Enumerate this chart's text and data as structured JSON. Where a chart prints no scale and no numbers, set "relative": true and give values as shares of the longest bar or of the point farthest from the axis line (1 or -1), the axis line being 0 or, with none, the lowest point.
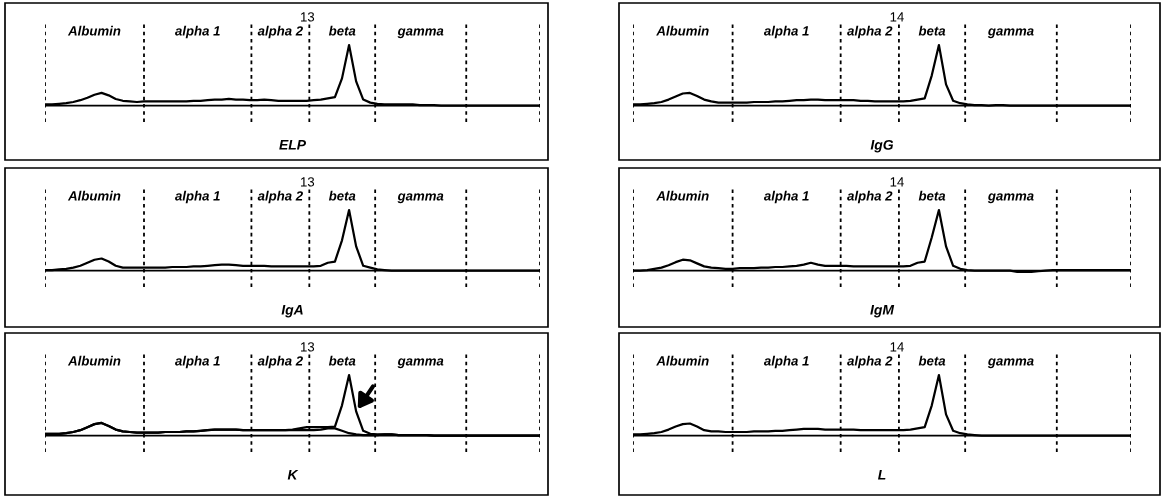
{
  "chart_data": [
    {
      "type": "line",
      "title": "ELP",
      "relative": true,
      "annotations": [
        "13",
        "Albumin",
        "alpha 1",
        "alpha 2",
        "beta",
        "gamma"
      ],
      "categories": [
        null,
        null,
        null,
        null,
        null,
        null,
        null,
        null,
        null,
        null,
        null,
        null,
        null,
        null,
        null,
        null,
        null,
        null,
        null,
        null,
        null,
        null,
        null,
        null,
        null,
        null,
        null,
        null,
        null,
        null,
        null,
        null,
        null,
        null,
        null,
        null,
        null,
        null,
        null,
        null,
        null,
        null,
        null,
        null,
        null,
        null,
        null,
        null,
        null,
        null,
        null,
        null,
        null,
        null,
        null,
        null,
        null,
        null,
        null,
        null,
        null,
        null,
        null,
        null,
        null,
        null,
        null,
        null,
        null,
        null,
        null
      ],
      "series": [
        {
          "color": "#000000",
          "values": [
            0.02,
            0.02,
            0.03,
            0.04,
            0.06,
            0.09,
            0.13,
            0.18,
            0.21,
            0.17,
            0.11,
            0.08,
            0.07,
            0.06,
            0.07,
            0.07,
            0.07,
            0.07,
            0.07,
            0.07,
            0.07,
            0.08,
            0.08,
            0.09,
            0.1,
            0.1,
            0.11,
            0.1,
            0.1,
            0.09,
            0.09,
            0.1,
            0.09,
            0.08,
            0.08,
            0.08,
            0.08,
            0.08,
            0.09,
            0.1,
            0.12,
            0.14,
            0.45,
            1.0,
            0.4,
            0.1,
            0.05,
            0.03,
            0.02,
            0.02,
            0.02,
            0.02,
            0.02,
            0.01,
            0.01,
            0.01,
            0,
            0,
            0,
            0,
            0,
            0,
            0,
            0,
            0,
            0,
            0,
            0,
            0,
            0,
            0
          ]
        }
      ]
    },
    {
      "type": "line",
      "title": "IgG",
      "relative": true,
      "annotations": [
        "14",
        "Albumin",
        "alpha 1",
        "alpha 2",
        "beta",
        "gamma"
      ],
      "categories": [
        null,
        null,
        null,
        null,
        null,
        null,
        null,
        null,
        null,
        null,
        null,
        null,
        null,
        null,
        null,
        null,
        null,
        null,
        null,
        null,
        null,
        null,
        null,
        null,
        null,
        null,
        null,
        null,
        null,
        null,
        null,
        null,
        null,
        null,
        null,
        null,
        null,
        null,
        null,
        null,
        null,
        null,
        null,
        null,
        null,
        null,
        null,
        null,
        null,
        null,
        null,
        null,
        null,
        null,
        null,
        null,
        null,
        null,
        null,
        null,
        null,
        null,
        null,
        null,
        null,
        null,
        null,
        null,
        null,
        null,
        null
      ],
      "series": [
        {
          "color": "#000000",
          "values": [
            0.02,
            0.02,
            0.03,
            0.04,
            0.06,
            0.1,
            0.15,
            0.2,
            0.21,
            0.16,
            0.1,
            0.07,
            0.05,
            0.05,
            0.05,
            0.05,
            0.05,
            0.06,
            0.06,
            0.06,
            0.07,
            0.07,
            0.08,
            0.09,
            0.09,
            0.1,
            0.1,
            0.09,
            0.09,
            0.09,
            0.09,
            0.09,
            0.08,
            0.08,
            0.07,
            0.07,
            0.07,
            0.07,
            0.07,
            0.08,
            0.1,
            0.12,
            0.5,
            1.0,
            0.35,
            0.08,
            0.04,
            0.02,
            0.01,
            0.01,
            0,
            0.01,
            0.01,
            0,
            0,
            0,
            0,
            0,
            0,
            0,
            0,
            0,
            0,
            0,
            0,
            0,
            0,
            0,
            0,
            0,
            0
          ]
        }
      ]
    },
    {
      "type": "line",
      "title": "IgA",
      "relative": true,
      "annotations": [
        "13",
        "Albumin",
        "alpha 1",
        "alpha 2",
        "beta",
        "gamma"
      ],
      "categories": [
        null,
        null,
        null,
        null,
        null,
        null,
        null,
        null,
        null,
        null,
        null,
        null,
        null,
        null,
        null,
        null,
        null,
        null,
        null,
        null,
        null,
        null,
        null,
        null,
        null,
        null,
        null,
        null,
        null,
        null,
        null,
        null,
        null,
        null,
        null,
        null,
        null,
        null,
        null,
        null,
        null,
        null,
        null,
        null,
        null,
        null,
        null,
        null,
        null,
        null,
        null,
        null,
        null,
        null,
        null,
        null,
        null,
        null,
        null,
        null,
        null,
        null,
        null,
        null,
        null,
        null,
        null,
        null,
        null,
        null,
        null
      ],
      "series": [
        {
          "color": "#000000",
          "values": [
            0.01,
            0.01,
            0.02,
            0.03,
            0.05,
            0.08,
            0.13,
            0.18,
            0.2,
            0.15,
            0.08,
            0.05,
            0.05,
            0.05,
            0.05,
            0.05,
            0.05,
            0.05,
            0.06,
            0.06,
            0.06,
            0.07,
            0.07,
            0.08,
            0.09,
            0.1,
            0.1,
            0.09,
            0.08,
            0.08,
            0.08,
            0.08,
            0.07,
            0.07,
            0.07,
            0.07,
            0.07,
            0.07,
            0.07,
            0.08,
            0.13,
            0.15,
            0.5,
            1.0,
            0.4,
            0.08,
            0.05,
            0.02,
            0.01,
            0,
            0,
            0,
            0,
            0,
            0,
            0,
            0,
            0,
            0,
            0,
            0,
            0,
            0,
            0,
            0,
            0,
            0,
            0,
            0,
            0,
            0
          ]
        }
      ]
    },
    {
      "type": "line",
      "title": "IgM",
      "relative": true,
      "annotations": [
        "14",
        "Albumin",
        "alpha 1",
        "alpha 2",
        "beta",
        "gamma"
      ],
      "categories": [
        null,
        null,
        null,
        null,
        null,
        null,
        null,
        null,
        null,
        null,
        null,
        null,
        null,
        null,
        null,
        null,
        null,
        null,
        null,
        null,
        null,
        null,
        null,
        null,
        null,
        null,
        null,
        null,
        null,
        null,
        null,
        null,
        null,
        null,
        null,
        null,
        null,
        null,
        null,
        null,
        null,
        null,
        null,
        null,
        null,
        null,
        null,
        null,
        null,
        null,
        null,
        null,
        null,
        null,
        null,
        null,
        null,
        null,
        null,
        null,
        null,
        null,
        null,
        null,
        null,
        null,
        null,
        null,
        null,
        null,
        null
      ],
      "series": [
        {
          "color": "#000000",
          "values": [
            0,
            0,
            0.01,
            0.03,
            0.05,
            0.09,
            0.14,
            0.18,
            0.17,
            0.12,
            0.07,
            0.05,
            0.04,
            0.03,
            0.03,
            0.04,
            0.04,
            0.04,
            0.05,
            0.05,
            0.06,
            0.06,
            0.07,
            0.08,
            0.1,
            0.13,
            0.1,
            0.08,
            0.08,
            0.08,
            0.08,
            0.07,
            0.07,
            0.07,
            0.07,
            0.07,
            0.07,
            0.07,
            0.07,
            0.08,
            0.13,
            0.15,
            0.55,
            1.0,
            0.4,
            0.08,
            0.03,
            0.01,
            0,
            0,
            0,
            0,
            0,
            0,
            -0.02,
            -0.02,
            -0.02,
            -0.01,
            0,
            0.01,
            0.01,
            0.01,
            0.01,
            0.01,
            0.01,
            0.01,
            0.01,
            0.01,
            0.01,
            0.01,
            0.01
          ]
        }
      ]
    },
    {
      "type": "line",
      "title": "K",
      "relative": true,
      "annotations": [
        "13",
        "Albumin",
        "alpha 1",
        "alpha 2",
        "beta",
        "gamma"
      ],
      "categories": [
        null,
        null,
        null,
        null,
        null,
        null,
        null,
        null,
        null,
        null,
        null,
        null,
        null,
        null,
        null,
        null,
        null,
        null,
        null,
        null,
        null,
        null,
        null,
        null,
        null,
        null,
        null,
        null,
        null,
        null,
        null,
        null,
        null,
        null,
        null,
        null,
        null,
        null,
        null,
        null,
        null,
        null,
        null,
        null,
        null,
        null,
        null,
        null,
        null,
        null,
        null,
        null,
        null,
        null,
        null,
        null,
        null,
        null,
        null,
        null,
        null,
        null,
        null,
        null,
        null,
        null,
        null,
        null,
        null,
        null,
        null
      ],
      "series": [
        {
          "color": "#000000",
          "values": [
            0.03,
            0.03,
            0.03,
            0.04,
            0.06,
            0.09,
            0.14,
            0.19,
            0.21,
            0.16,
            0.1,
            0.07,
            0.06,
            0.05,
            0.05,
            0.05,
            0.05,
            0.06,
            0.06,
            0.06,
            0.07,
            0.07,
            0.08,
            0.09,
            0.1,
            0.1,
            0.1,
            0.1,
            0.09,
            0.09,
            0.09,
            0.09,
            0.09,
            0.09,
            0.09,
            0.1,
            0.12,
            0.14,
            0.14,
            0.14,
            0.14,
            0.15,
            0.5,
            1.0,
            0.4,
            0.08,
            0.03,
            0.02,
            0.02,
            0.02,
            0.01,
            0.01,
            0.01,
            0.01,
            0.01,
            0,
            0,
            0,
            0,
            0,
            0,
            0,
            0,
            0,
            0,
            0,
            0,
            0,
            0,
            0,
            0
          ]
        },
        {
          "color": "#000000",
          "values": [
            0.03,
            0.03,
            0.03,
            0.04,
            0.06,
            0.09,
            0.14,
            0.19,
            0.21,
            0.16,
            0.1,
            0.07,
            0.06,
            0.05,
            0.05,
            0.05,
            0.05,
            0.06,
            0.06,
            0.06,
            0.07,
            0.07,
            0.08,
            0.09,
            0.1,
            0.1,
            0.1,
            0.1,
            0.09,
            0.09,
            0.09,
            0.09,
            0.09,
            0.09,
            0.09,
            0.09,
            0.09,
            0.09,
            0.09,
            0.1,
            0.12,
            0.12,
            0.08,
            0.04,
            0.02,
            0.01,
            0.01,
            0.01,
            0.02,
            0.02,
            0.01,
            0.01,
            0.01,
            0.01,
            0.01,
            0,
            0,
            0,
            0,
            0,
            0,
            0,
            0,
            0,
            0,
            0,
            0,
            0,
            0,
            0,
            0
          ]
        }
      ]
    },
    {
      "type": "line",
      "title": "L",
      "relative": true,
      "annotations": [
        "14",
        "Albumin",
        "alpha 1",
        "alpha 2",
        "beta",
        "gamma"
      ],
      "categories": [
        null,
        null,
        null,
        null,
        null,
        null,
        null,
        null,
        null,
        null,
        null,
        null,
        null,
        null,
        null,
        null,
        null,
        null,
        null,
        null,
        null,
        null,
        null,
        null,
        null,
        null,
        null,
        null,
        null,
        null,
        null,
        null,
        null,
        null,
        null,
        null,
        null,
        null,
        null,
        null,
        null,
        null,
        null,
        null,
        null,
        null,
        null,
        null,
        null,
        null,
        null,
        null,
        null,
        null,
        null,
        null,
        null,
        null,
        null,
        null,
        null,
        null,
        null,
        null,
        null,
        null,
        null,
        null,
        null,
        null,
        null
      ],
      "series": [
        {
          "color": "#000000",
          "values": [
            0.02,
            0.02,
            0.03,
            0.04,
            0.06,
            0.1,
            0.15,
            0.19,
            0.2,
            0.15,
            0.09,
            0.07,
            0.07,
            0.06,
            0.06,
            0.06,
            0.06,
            0.07,
            0.07,
            0.07,
            0.08,
            0.08,
            0.09,
            0.1,
            0.11,
            0.11,
            0.11,
            0.1,
            0.1,
            0.1,
            0.1,
            0.1,
            0.09,
            0.09,
            0.09,
            0.09,
            0.09,
            0.09,
            0.09,
            0.1,
            0.12,
            0.14,
            0.5,
            1.0,
            0.35,
            0.08,
            0.04,
            0.02,
            0.01,
            0,
            0,
            0,
            0,
            0,
            0,
            0,
            0,
            0,
            0,
            0,
            0,
            0,
            0,
            0,
            0,
            0,
            0,
            0,
            0,
            0,
            0
          ]
        }
      ]
    }
  ]
}
